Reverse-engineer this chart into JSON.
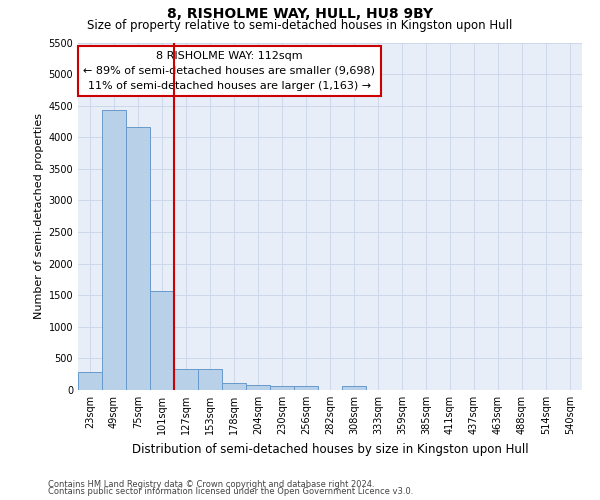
{
  "title": "8, RISHOLME WAY, HULL, HU8 9BY",
  "subtitle": "Size of property relative to semi-detached houses in Kingston upon Hull",
  "xlabel": "Distribution of semi-detached houses by size in Kingston upon Hull",
  "ylabel": "Number of semi-detached properties",
  "footnote1": "Contains HM Land Registry data © Crown copyright and database right 2024.",
  "footnote2": "Contains public sector information licensed under the Open Government Licence v3.0.",
  "annotation_title": "8 RISHOLME WAY: 112sqm",
  "annotation_line1": "← 89% of semi-detached houses are smaller (9,698)",
  "annotation_line2": "11% of semi-detached houses are larger (1,163) →",
  "bar_labels": [
    "23sqm",
    "49sqm",
    "75sqm",
    "101sqm",
    "127sqm",
    "153sqm",
    "178sqm",
    "204sqm",
    "230sqm",
    "256sqm",
    "282sqm",
    "308sqm",
    "333sqm",
    "359sqm",
    "385sqm",
    "411sqm",
    "437sqm",
    "463sqm",
    "488sqm",
    "514sqm",
    "540sqm"
  ],
  "bar_values": [
    280,
    4430,
    4160,
    1560,
    325,
    325,
    110,
    75,
    65,
    60,
    0,
    65,
    0,
    0,
    0,
    0,
    0,
    0,
    0,
    0,
    0
  ],
  "bar_color": "#b8d0e8",
  "bar_edge_color": "#6699cc",
  "vline_color": "#cc0000",
  "vline_x": 3.5,
  "ylim_max": 5500,
  "yticks": [
    0,
    500,
    1000,
    1500,
    2000,
    2500,
    3000,
    3500,
    4000,
    4500,
    5000,
    5500
  ],
  "grid_color": "#c8d4e8",
  "bg_color": "#e8eef8",
  "annotation_box_facecolor": "#ffffff",
  "annotation_box_edgecolor": "#cc0000",
  "title_fontsize": 10,
  "subtitle_fontsize": 8.5,
  "xlabel_fontsize": 8.5,
  "ylabel_fontsize": 8,
  "tick_fontsize": 7,
  "annotation_fontsize": 8,
  "footnote_fontsize": 6
}
